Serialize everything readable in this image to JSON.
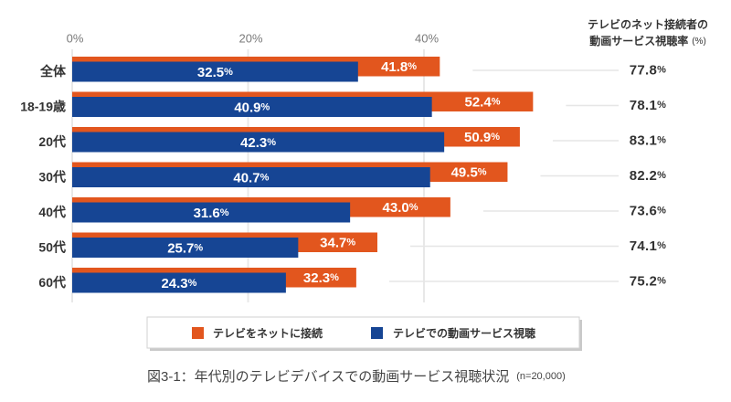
{
  "chart_data": {
    "type": "bar",
    "orientation": "horizontal",
    "title": "",
    "caption": "図3-1：年代別のテレビデバイスでの動画サービス視聴状況",
    "caption_note": "(n=20,000)",
    "xlabel": "",
    "ylabel": "",
    "categories": [
      "全体",
      "18-19歳",
      "20代",
      "30代",
      "40代",
      "50代",
      "60代"
    ],
    "xticks": [
      0,
      20,
      40
    ],
    "xtick_labels": [
      "0%",
      "20%",
      "40%"
    ],
    "grid": true,
    "value_unit": "%",
    "series": [
      {
        "name": "テレビをネットに接続",
        "color": "#E2561E",
        "values": [
          41.8,
          52.4,
          50.9,
          49.5,
          43.0,
          34.7,
          32.3
        ],
        "labels": [
          "41.8",
          "52.4",
          "50.9",
          "49.5",
          "43.0",
          "34.7",
          "32.3"
        ]
      },
      {
        "name": "テレビでの動画サービス視聴",
        "color": "#164594",
        "values": [
          32.5,
          40.9,
          42.3,
          40.7,
          31.6,
          25.7,
          24.3
        ],
        "labels": [
          "32.5",
          "40.9",
          "42.3",
          "40.7",
          "31.6",
          "25.7",
          "24.3"
        ]
      }
    ],
    "side_column": {
      "title_lines": [
        "テレビのネット接続者の",
        "動画サービス視聴率"
      ],
      "title_unit": "(%)",
      "values": [
        77.8,
        78.1,
        83.1,
        82.2,
        73.6,
        74.1,
        75.2
      ],
      "labels": [
        "77.8",
        "78.1",
        "83.1",
        "82.2",
        "73.6",
        "74.1",
        "75.2"
      ]
    },
    "legend": {
      "position": "bottom"
    }
  }
}
